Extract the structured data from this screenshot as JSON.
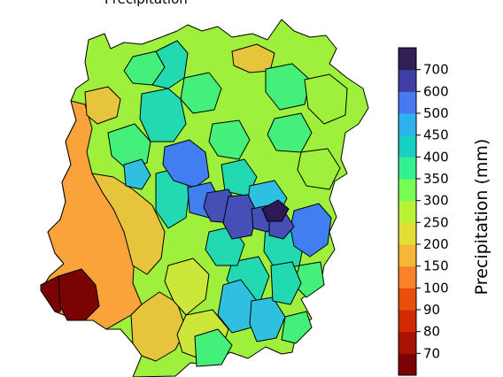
{
  "header": {
    "partial_title": "Precipitation"
  },
  "colorbar": {
    "label": "Precipitation (mm)",
    "levels": [
      "70",
      "80",
      "90",
      "100",
      "150",
      "200",
      "250",
      "300",
      "350",
      "400",
      "450",
      "500",
      "600",
      "700"
    ],
    "colors": [
      "#7a0403",
      "#a81203",
      "#cf2a04",
      "#ea4e0d",
      "#f9822a",
      "#f5b63a",
      "#e3de36",
      "#b7f236",
      "#79fd56",
      "#35f08e",
      "#19d1c3",
      "#2fb0ef",
      "#4879f3",
      "#3e3ea5",
      "#2f1f52"
    ]
  },
  "map": {
    "colors": {
      "deep_red": "#7a0403",
      "orange": "#f9a33a",
      "yellow_orange": "#e6c53c",
      "yellow": "#cbe83a",
      "lime": "#9ef03c",
      "green": "#45f07a",
      "teal": "#22d9b2",
      "cyan": "#2fc0e0",
      "blue": "#3f7ff0",
      "indigo": "#4450b5",
      "dark_purple": "#2b1a56"
    }
  }
}
